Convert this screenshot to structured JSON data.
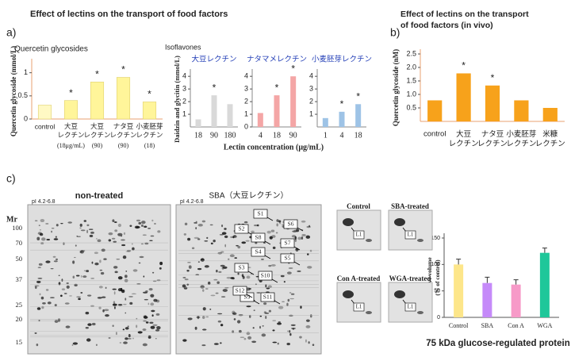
{
  "panel_a": {
    "label": "a)",
    "title": "Effect of lectins on the transport of food factors"
  },
  "panel_b": {
    "label": "b)"
  },
  "panel_c": {
    "label": "c)",
    "caption": "75 kDa glucose-regulated protein"
  },
  "chart_data": [
    {
      "type": "bar",
      "title": "Quercetin glycosides",
      "y_label": "Quercetin glycoside (mmol/L)",
      "categories": [
        "control",
        "大豆\nレクチン",
        "大豆\nレクチン",
        "ナタ豆\nレクチン",
        "小麦胚芽\nレクチン"
      ],
      "sublabels": [
        null,
        "(18μg/mL)",
        "(90)",
        "(90)",
        "(18)"
      ],
      "values": [
        0.3,
        0.4,
        0.8,
        0.9,
        0.37
      ],
      "colors": [
        "#fff9c4",
        "#fff59a",
        "#fff59a",
        "#fff59a",
        "#fff59a"
      ],
      "significance": [
        null,
        "*",
        "*",
        "*",
        "*"
      ],
      "ylim": [
        0,
        1.2
      ],
      "yticks": [
        0,
        0.5,
        1
      ]
    },
    {
      "type": "bar-panels",
      "title": "Isoflavones",
      "y_label": "Daidzin and glycitin (mmol/L)",
      "x_label": "Lectin concentration (μg/mL)",
      "ylim": [
        0,
        4.2
      ],
      "panels": [
        {
          "name": "大豆レクチン",
          "color": "#d9d9d9",
          "categories": [
            "18",
            "90",
            "180"
          ],
          "values": [
            0.6,
            2.5,
            1.8
          ],
          "significance": [
            null,
            "*",
            null
          ],
          "yticks": [
            1,
            2,
            3,
            4
          ]
        },
        {
          "name": "ナタマメレクチン",
          "color": "#f4a6a6",
          "categories": [
            "4",
            "18",
            "90"
          ],
          "values": [
            1.1,
            2.5,
            4.0
          ],
          "significance": [
            null,
            "*",
            "*"
          ],
          "yticks": [
            0,
            1,
            2,
            3,
            4
          ]
        },
        {
          "name": "小麦胚芽レクチン",
          "color": "#9ec3e6",
          "categories": [
            "1",
            "4",
            "18"
          ],
          "values": [
            0.7,
            1.2,
            1.8
          ],
          "significance": [
            null,
            "*",
            "*"
          ],
          "yticks": [
            1,
            2,
            3,
            4
          ]
        }
      ]
    },
    {
      "type": "bar",
      "title": "Effect of lectins on the transport\nof food factors (in vivo)",
      "y_label": "Quercetin glycoside (nM)",
      "categories": [
        "control",
        "大豆\nレクチン",
        "ナタ豆\nレクチン",
        "小麦胚芽\nレクチン",
        "米糠\nレクチン"
      ],
      "values": [
        0.78,
        1.78,
        1.33,
        0.78,
        0.5
      ],
      "colors": [
        "#f7a21b",
        "#f7a21b",
        "#f7a21b",
        "#f7a21b",
        "#f7a21b"
      ],
      "significance": [
        null,
        "*",
        "*",
        null,
        null
      ],
      "ylim": [
        0,
        2.5
      ],
      "yticks": [
        0.5,
        {
          "value": 1,
          "label": "1.0"
        },
        1.5,
        {
          "value": 2,
          "label": "2.0"
        },
        2.5
      ]
    },
    {
      "type": "bar",
      "y_label": "Relative volume\n(% of control)",
      "categories": [
        "Control",
        "SBA",
        "Con A",
        "WGA"
      ],
      "values": [
        100,
        65,
        62,
        122
      ],
      "errors": [
        10,
        11,
        9,
        9
      ],
      "colors": [
        "#fde68a",
        "#c58af9",
        "#f79ac8",
        "#1fc79a"
      ],
      "ylim": [
        0,
        150
      ],
      "yticks": [
        0,
        50,
        100,
        150
      ]
    }
  ],
  "gels": [
    {
      "title": "non-treated",
      "pi": "pI 4.2-6.8"
    },
    {
      "title": "SBA（大豆レクチン）",
      "pi": "pI 4.2-6.8",
      "spots": [
        "S1",
        "S2",
        "S3",
        "S4",
        "S5",
        "S6",
        "S7",
        "S8",
        "S9",
        "S10",
        "S11",
        "S12"
      ]
    }
  ],
  "mr": {
    "label": "Mr",
    "ticks": [
      "100",
      "70",
      "50",
      "37",
      "25",
      "20",
      "15"
    ]
  },
  "insets": [
    {
      "title": "Control",
      "spot": "L1"
    },
    {
      "title": "SBA-treated",
      "spot": "L1"
    },
    {
      "title": "Con A-treated",
      "spot": "L1"
    },
    {
      "title": "WGA-treated",
      "spot": "L1"
    }
  ]
}
